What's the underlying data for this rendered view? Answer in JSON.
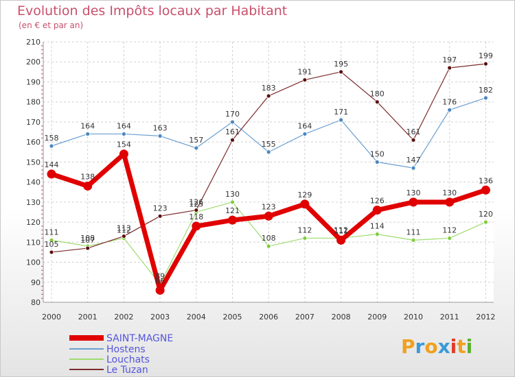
{
  "chart_data": {
    "type": "line",
    "title": "Evolution des Impôts locaux par Habitant",
    "subtitle": "(en € et par an)",
    "xlabel": "",
    "ylabel": "",
    "x": [
      "2000",
      "2001",
      "2002",
      "2003",
      "2004",
      "2005",
      "2006",
      "2007",
      "2008",
      "2009",
      "2010",
      "2011",
      "2012"
    ],
    "ylim": [
      80,
      210
    ],
    "yticks": [
      "80",
      "90",
      "100",
      "110",
      "120",
      "130",
      "140",
      "150",
      "160",
      "170",
      "180",
      "190",
      "200",
      "210"
    ],
    "grid": true,
    "legend_position": "bottom-left",
    "series": [
      {
        "name": "SAINT-MAGNE",
        "color": "#e00000",
        "values": [
          144,
          138,
          154,
          86,
          118,
          121,
          123,
          129,
          111,
          126,
          130,
          130,
          136
        ]
      },
      {
        "name": "Hostens",
        "color": "#6a9ed0",
        "values": [
          158,
          164,
          164,
          163,
          157,
          170,
          155,
          164,
          171,
          150,
          147,
          176,
          182
        ]
      },
      {
        "name": "Louchats",
        "color": "#9edb6e",
        "values": [
          111,
          108,
          112,
          89,
          125,
          130,
          108,
          112,
          112,
          114,
          111,
          112,
          120
        ]
      },
      {
        "name": "Le Tuzan",
        "color": "#7a2a2a",
        "values": [
          105,
          107,
          113,
          123,
          126,
          161,
          183,
          191,
          195,
          180,
          161,
          197,
          199
        ]
      }
    ]
  },
  "logo": {
    "letters": [
      "P",
      "r",
      "o",
      "x",
      "i",
      "t",
      "i"
    ],
    "colors": [
      "#f0a020",
      "#3a9ad8",
      "#f0a020",
      "#3a9ad8",
      "#e03c2a",
      "#f0a020",
      "#5ab030"
    ]
  }
}
